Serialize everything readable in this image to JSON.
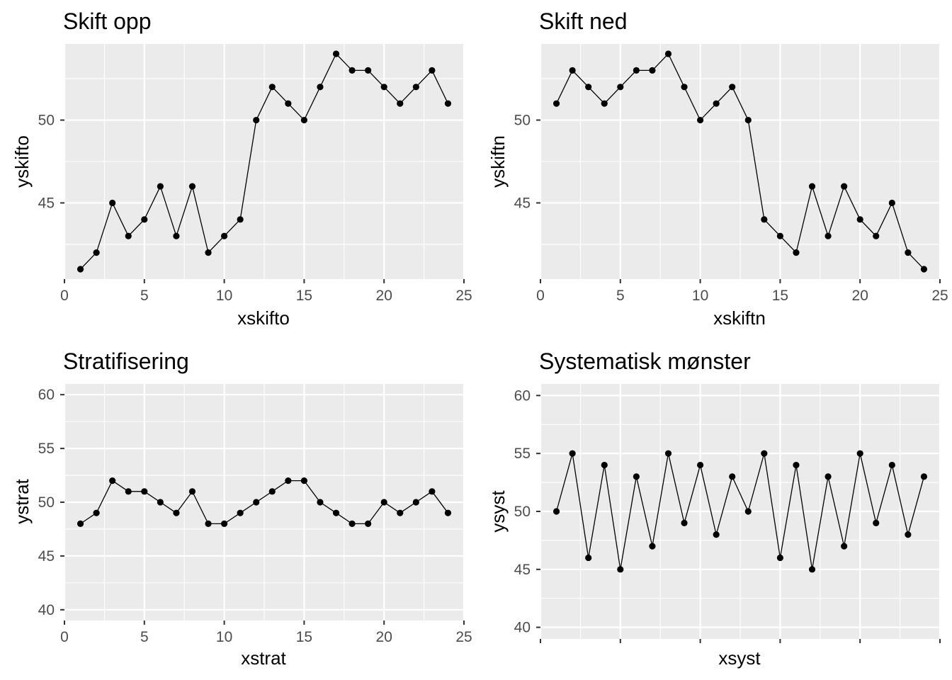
{
  "chart_data": [
    {
      "type": "line",
      "title": "Skift opp",
      "xlabel": "xskifto",
      "ylabel": "yskifto",
      "xlim": [
        0,
        25
      ],
      "ylim": [
        40.4,
        54.6
      ],
      "x_ticks": [
        0,
        5,
        10,
        15,
        20,
        25
      ],
      "y_ticks": [
        45,
        50
      ],
      "show_x_tick_labels": true,
      "grid": true,
      "series": [
        {
          "x": [
            1,
            2,
            3,
            4,
            5,
            6,
            7,
            8,
            9,
            10,
            11,
            12,
            13,
            14,
            15,
            16,
            17,
            18,
            19,
            20,
            21,
            22,
            23,
            24
          ],
          "y": [
            41,
            42,
            45,
            43,
            44,
            46,
            43,
            46,
            42,
            43,
            44,
            50,
            52,
            51,
            50,
            52,
            54,
            53,
            53,
            52,
            51,
            52,
            53,
            51
          ]
        }
      ]
    },
    {
      "type": "line",
      "title": "Skift ned",
      "xlabel": "xskiftn",
      "ylabel": "yskiftn",
      "xlim": [
        0,
        25
      ],
      "ylim": [
        40.4,
        54.6
      ],
      "x_ticks": [
        0,
        5,
        10,
        15,
        20,
        25
      ],
      "y_ticks": [
        45,
        50
      ],
      "show_x_tick_labels": true,
      "grid": true,
      "series": [
        {
          "x": [
            1,
            2,
            3,
            4,
            5,
            6,
            7,
            8,
            9,
            10,
            11,
            12,
            13,
            14,
            15,
            16,
            17,
            18,
            19,
            20,
            21,
            22,
            23,
            24
          ],
          "y": [
            51,
            53,
            52,
            51,
            52,
            53,
            53,
            54,
            52,
            50,
            51,
            52,
            50,
            44,
            43,
            42,
            46,
            43,
            46,
            44,
            43,
            45,
            42,
            41
          ]
        }
      ]
    },
    {
      "type": "line",
      "title": "Stratifisering",
      "xlabel": "xstrat",
      "ylabel": "ystrat",
      "xlim": [
        0,
        25
      ],
      "ylim": [
        39,
        61
      ],
      "x_ticks": [
        0,
        5,
        10,
        15,
        20,
        25
      ],
      "y_ticks": [
        40,
        45,
        50,
        55,
        60
      ],
      "show_x_tick_labels": true,
      "grid": true,
      "series": [
        {
          "x": [
            1,
            2,
            3,
            4,
            5,
            6,
            7,
            8,
            9,
            10,
            11,
            12,
            13,
            14,
            15,
            16,
            17,
            18,
            19,
            20,
            21,
            22,
            23,
            24
          ],
          "y": [
            48,
            49,
            52,
            51,
            51,
            50,
            49,
            51,
            48,
            48,
            49,
            50,
            51,
            52,
            52,
            50,
            49,
            48,
            48,
            50,
            49,
            50,
            51,
            49
          ]
        }
      ]
    },
    {
      "type": "line",
      "title": "Systematisk mønster",
      "xlabel": "xsyst",
      "ylabel": "ysyst",
      "xlim": [
        0,
        25
      ],
      "ylim": [
        39,
        61
      ],
      "x_ticks": [
        0,
        5,
        10,
        15,
        20,
        25
      ],
      "y_ticks": [
        40,
        45,
        50,
        55,
        60
      ],
      "show_x_tick_labels": false,
      "grid": true,
      "series": [
        {
          "x": [
            1,
            2,
            3,
            4,
            5,
            6,
            7,
            8,
            9,
            10,
            11,
            12,
            13,
            14,
            15,
            16,
            17,
            18,
            19,
            20,
            21,
            22,
            23,
            24
          ],
          "y": [
            50,
            55,
            46,
            54,
            45,
            53,
            47,
            55,
            49,
            54,
            48,
            53,
            50,
            55,
            46,
            54,
            45,
            53,
            47,
            55,
            49,
            54,
            48,
            53
          ]
        }
      ]
    }
  ]
}
